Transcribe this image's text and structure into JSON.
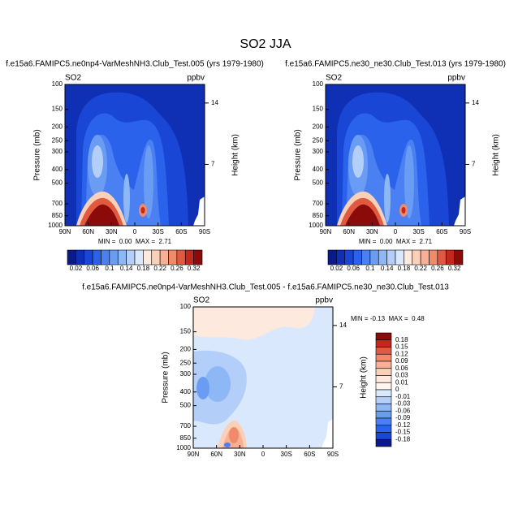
{
  "title": "SO2 JJA",
  "axes": {
    "variable": "SO2",
    "units": "ppbv",
    "y_label": "Pressure (mb)",
    "y2_label": "Height (km)",
    "pressure_lim": [
      100,
      1000
    ],
    "pressure_ticks": [
      100,
      150,
      200,
      250,
      300,
      400,
      500,
      700,
      850,
      1000
    ],
    "height_ticks": [
      14,
      7
    ],
    "lat_ticks": [
      "90N",
      "60N",
      "30N",
      "0",
      "30S",
      "60S",
      "90S"
    ]
  },
  "panels": [
    {
      "subtitle": "f.e15a6.FAMIPC5.ne0np4-VarMeshNH3.Club_Test.005 (yrs 1979-1980)",
      "min_max": "MIN =  0.00  MAX =  2.71"
    },
    {
      "subtitle": "f.e15a6.FAMIPC5.ne30_ne30.Club_Test.013 (yrs 1979-1980)",
      "min_max": "MIN =  0.00  MAX =  2.71"
    },
    {
      "subtitle": "f.e15a6.FAMIPC5.ne0np4-VarMeshNH3.Club_Test.005 - f.e15a6.FAMIPC5.ne30_ne30.Club_Test.013",
      "min_max": "MIN = -0.13  MAX =  0.48"
    }
  ],
  "colorbar_top": {
    "colors": [
      "#0a1a8a",
      "#0f2fb5",
      "#1a46d6",
      "#2a62ec",
      "#4a80f2",
      "#6b9cf4",
      "#8eb7f6",
      "#b3cff9",
      "#d9e8fc",
      "#fde9dd",
      "#fbd0b9",
      "#f7b095",
      "#f08a6b",
      "#e05a42",
      "#c2281e",
      "#8b0a0a"
    ],
    "labels": [
      0.02,
      0.06,
      0.1,
      0.14,
      0.18,
      0.22,
      0.26,
      0.32
    ]
  },
  "colorbar_diff": {
    "colors": [
      "#8b0a0a",
      "#c2281e",
      "#e05a42",
      "#f08a6b",
      "#f7b095",
      "#fbd0b9",
      "#fde9dd",
      "#fff5ee",
      "#d9e8fc",
      "#b3cff9",
      "#8eb7f6",
      "#6b9cf4",
      "#4a80f2",
      "#2a62ec",
      "#1a46d6",
      "#0a1a8a"
    ],
    "labels": [
      0.18,
      0.15,
      0.12,
      0.09,
      0.06,
      0.03,
      0.01,
      0,
      -0.01,
      -0.03,
      -0.06,
      -0.09,
      -0.12,
      -0.15,
      -0.18
    ]
  }
}
